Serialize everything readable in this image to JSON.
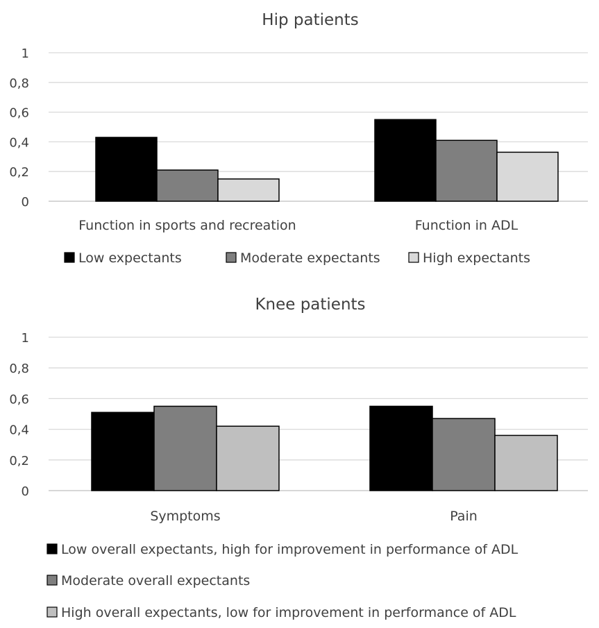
{
  "chart_data": [
    {
      "type": "bar",
      "title": "Hip patients",
      "xlabel": "",
      "ylabel": "",
      "categories": [
        "Function in sports and recreation",
        "Function in ADL"
      ],
      "series": [
        {
          "name": "Low expectants",
          "values": [
            0.43,
            0.55
          ],
          "color": "#000000"
        },
        {
          "name": "Moderate expectants",
          "values": [
            0.21,
            0.41
          ],
          "color": "#7f7f7f"
        },
        {
          "name": "High expectants",
          "values": [
            0.15,
            0.33
          ],
          "color": "#d9d9d9"
        }
      ],
      "yticks": [
        "0",
        "0,2",
        "0,4",
        "0,6",
        "0,8",
        "1"
      ],
      "ylim": [
        0,
        1
      ],
      "grid": true,
      "legend_position": "bottom"
    },
    {
      "type": "bar",
      "title": "Knee patients",
      "xlabel": "",
      "ylabel": "",
      "categories": [
        "Symptoms",
        "Pain"
      ],
      "series": [
        {
          "name": "Low overall expectants, high for improvement in performance of ADL",
          "values": [
            0.51,
            0.55
          ],
          "color": "#000000"
        },
        {
          "name": "Moderate overall expectants",
          "values": [
            0.55,
            0.47
          ],
          "color": "#7f7f7f"
        },
        {
          "name": "High overall expectants, low for improvement in performance of ADL",
          "values": [
            0.42,
            0.36
          ],
          "color": "#bfbfbf"
        }
      ],
      "yticks": [
        "0",
        "0,2",
        "0,4",
        "0,6",
        "0,8",
        "1"
      ],
      "ylim": [
        0,
        1
      ],
      "grid": true,
      "legend_position": "bottom"
    }
  ]
}
